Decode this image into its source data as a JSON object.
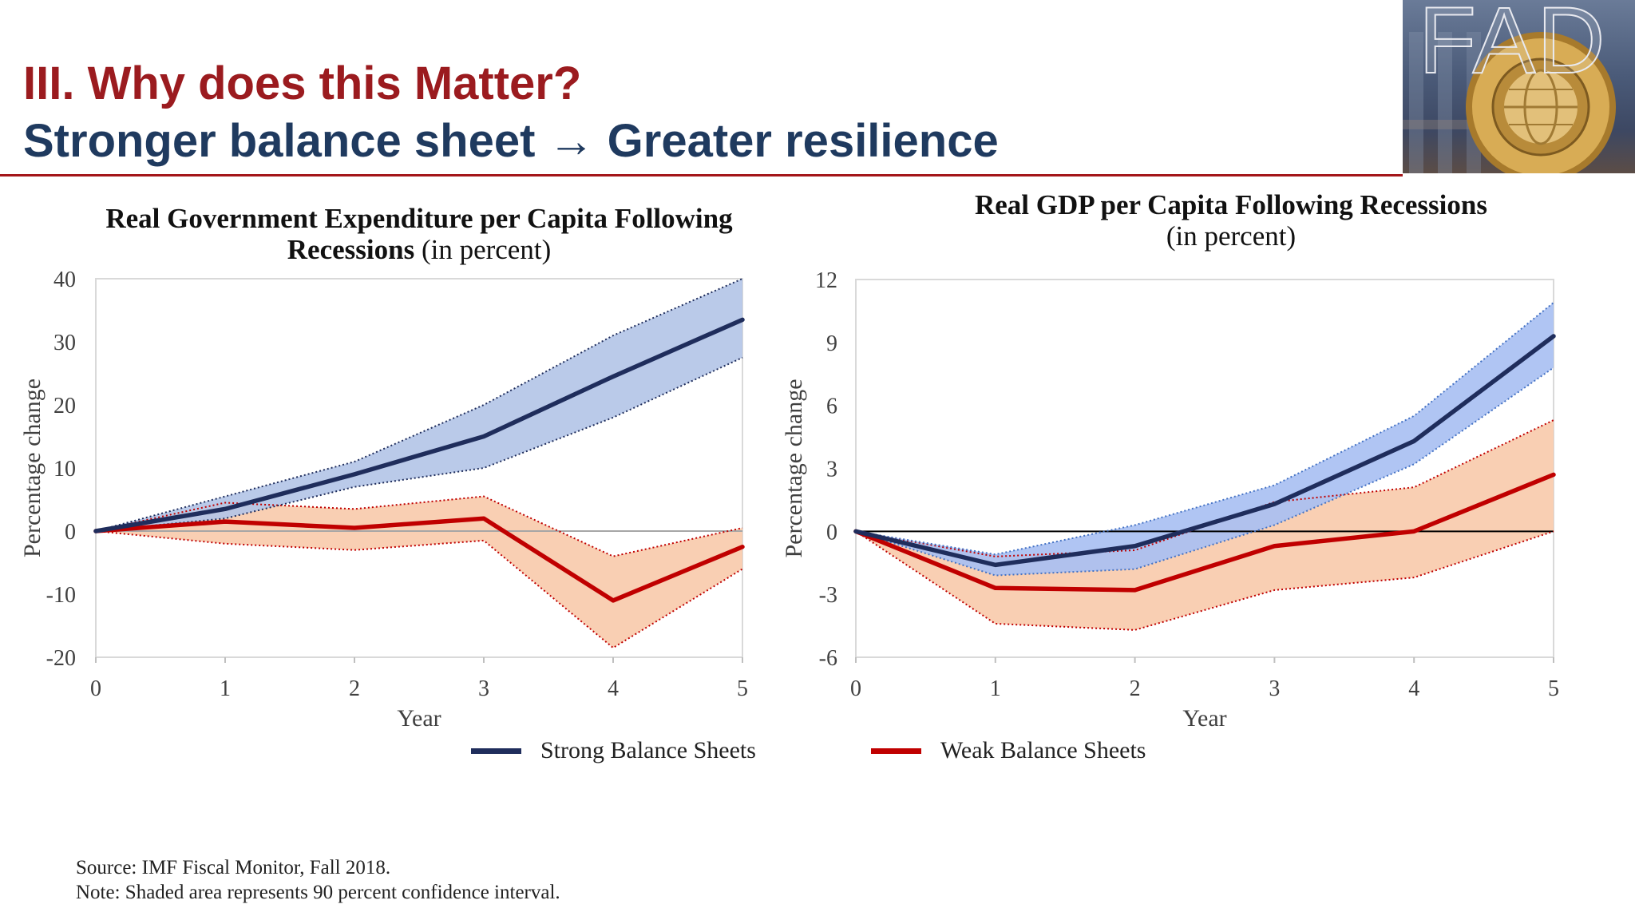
{
  "slide": {
    "title": "III. Why does this Matter?",
    "subtitle": "Stronger balance sheet → Greater resilience",
    "logo_text": "FAD",
    "colors": {
      "title": "#9b1b1f",
      "subtitle": "#1f3a5f",
      "rule": "#a4161a"
    }
  },
  "chart_data": [
    {
      "type": "line",
      "title_lines": [
        "Real Government Expenditure per Capita Following",
        "Recessions"
      ],
      "unit": "(in percent)",
      "xlabel": "Year",
      "ylabel": "Percentage change",
      "x": [
        0,
        1,
        2,
        3,
        4,
        5
      ],
      "ylim": [
        -20,
        40
      ],
      "yticks": [
        40,
        30,
        20,
        10,
        0,
        -10,
        -20
      ],
      "grid": false,
      "legend_position": "bottom",
      "zero_line_color": "#a6a6a6",
      "series": [
        {
          "name": "Strong Balance Sheets",
          "values": [
            0,
            3.5,
            9,
            15,
            24.5,
            33.5
          ],
          "upper": [
            0,
            5.5,
            11,
            20,
            31,
            40
          ],
          "lower": [
            0,
            2,
            7,
            10,
            18,
            27.5
          ],
          "color": "#1f2d5c",
          "band_color": "#b4c6e7",
          "band_edge_color": "#1f2d5c"
        },
        {
          "name": "Weak Balance Sheets",
          "values": [
            0,
            1.5,
            0.5,
            2,
            -11,
            -2.5
          ],
          "upper": [
            0,
            4.5,
            3.5,
            5.5,
            -4,
            0.5
          ],
          "lower": [
            0,
            -2,
            -3,
            -1.5,
            -18.5,
            -6
          ],
          "color": "#c00000",
          "band_color": "#f8cbad",
          "band_edge_color": "#c00000"
        }
      ]
    },
    {
      "type": "line",
      "title_lines": [
        "Real GDP per Capita Following Recessions"
      ],
      "unit": "(in percent)",
      "xlabel": "Year",
      "ylabel": "Percentage change",
      "x": [
        0,
        1,
        2,
        3,
        4,
        5
      ],
      "ylim": [
        -6,
        12
      ],
      "yticks": [
        12,
        9,
        6,
        3,
        0,
        -3,
        -6
      ],
      "grid": false,
      "legend_position": "bottom",
      "zero_line_color": "#000000",
      "series": [
        {
          "name": "Strong Balance Sheets",
          "values": [
            0,
            -1.6,
            -0.7,
            1.3,
            4.3,
            9.3
          ],
          "upper": [
            0,
            -1.1,
            0.3,
            2.2,
            5.5,
            10.9
          ],
          "lower": [
            0,
            -2.1,
            -1.8,
            0.3,
            3.2,
            7.8
          ],
          "color": "#1f2d5c",
          "band_color": "#a9c0f2",
          "band_edge_color": "#4472c4"
        },
        {
          "name": "Weak Balance Sheets",
          "values": [
            0,
            -2.7,
            -2.8,
            -0.7,
            0,
            2.7
          ],
          "upper": [
            0,
            -1.2,
            -0.9,
            1.4,
            2.1,
            5.3
          ],
          "lower": [
            0,
            -4.4,
            -4.7,
            -2.8,
            -2.2,
            0
          ],
          "color": "#c00000",
          "band_color": "#f8cbad",
          "band_edge_color": "#c00000"
        }
      ]
    }
  ],
  "footer": {
    "source": "Source: IMF Fiscal Monitor, Fall 2018.",
    "note": "Note: Shaded area represents 90 percent confidence interval."
  }
}
